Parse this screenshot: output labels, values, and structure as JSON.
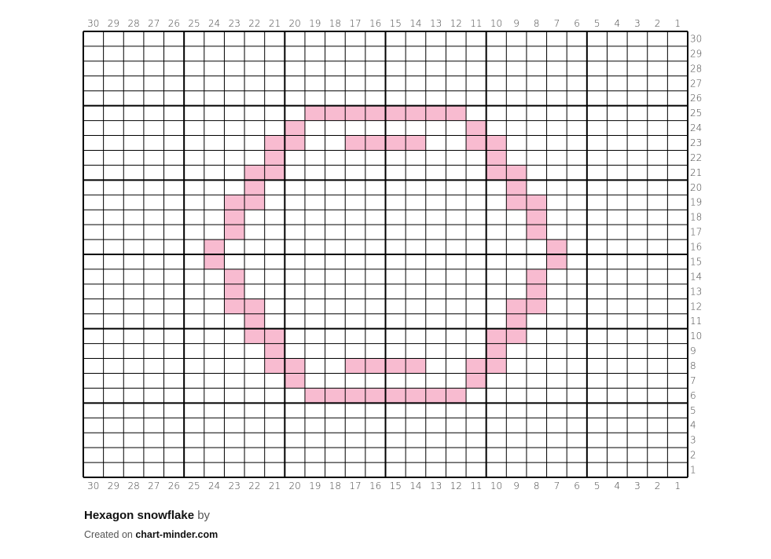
{
  "pattern": {
    "columns": 30,
    "rows": 30,
    "fill_color": "#f8bbd0",
    "grid_color": "#000000",
    "major_every": 5,
    "filled_cells": {
      "25": [
        19,
        18,
        17,
        16,
        15,
        14,
        13,
        12
      ],
      "24": [
        20,
        11
      ],
      "23": [
        21,
        20,
        17,
        16,
        15,
        14,
        11,
        10
      ],
      "22": [
        21,
        10
      ],
      "21": [
        22,
        21,
        10,
        9
      ],
      "20": [
        22,
        9
      ],
      "19": [
        23,
        22,
        9,
        8
      ],
      "18": [
        23,
        8
      ],
      "17": [
        23,
        8
      ],
      "16": [
        24,
        7
      ],
      "15": [
        24,
        7
      ],
      "14": [
        23,
        8
      ],
      "13": [
        23,
        8
      ],
      "12": [
        23,
        22,
        9,
        8
      ],
      "11": [
        22,
        9
      ],
      "10": [
        22,
        21,
        10,
        9
      ],
      "9": [
        21,
        10
      ],
      "8": [
        21,
        20,
        17,
        16,
        15,
        14,
        11,
        10
      ],
      "7": [
        20,
        11
      ],
      "6": [
        19,
        18,
        17,
        16,
        15,
        14,
        13,
        12
      ]
    }
  },
  "footer": {
    "title": "Hexagon snowflake",
    "by": "by",
    "created_on": "Created on",
    "site": "chart-minder.com"
  }
}
